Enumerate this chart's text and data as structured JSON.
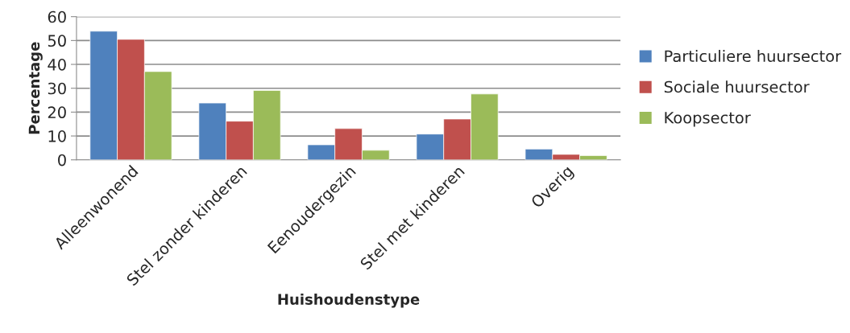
{
  "chart_data": {
    "type": "bar",
    "xlabel": "Huishoudenstype",
    "ylabel": "Percentage",
    "categories": [
      "Alleenwonend",
      "Stel zonder kinderen",
      "Eenoudergezin",
      "Stel met kinderen",
      "Overig"
    ],
    "series": [
      {
        "name": "Particuliere huursector",
        "color": "#4f81bd",
        "values": [
          53.9,
          23.8,
          6.3,
          10.8,
          4.5
        ]
      },
      {
        "name": "Sociale huursector",
        "color": "#c0504d",
        "values": [
          50.5,
          16.2,
          13.1,
          17.1,
          2.3
        ]
      },
      {
        "name": "Koopsector",
        "color": "#9bbb59",
        "values": [
          37.0,
          29.1,
          4.0,
          27.6,
          1.8
        ]
      }
    ],
    "ylim": [
      0,
      60
    ],
    "yticks": [
      0,
      10,
      20,
      30,
      40,
      50,
      60
    ],
    "grid": "y",
    "legend": "right"
  }
}
